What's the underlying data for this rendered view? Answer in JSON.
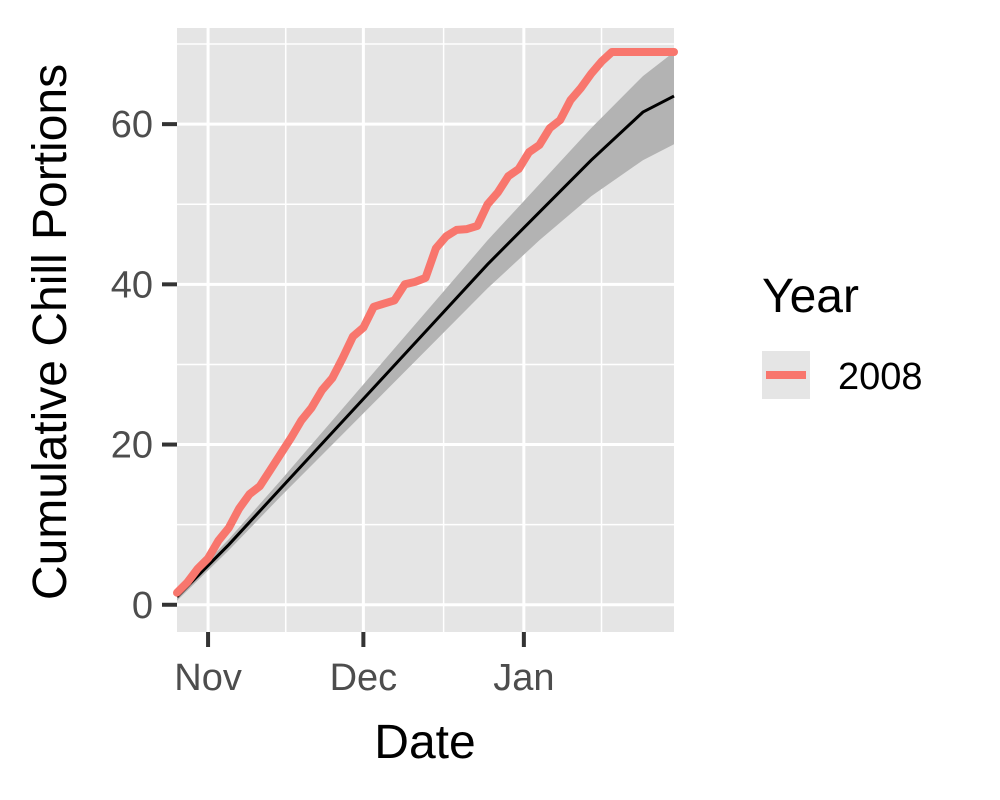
{
  "chart_data": {
    "type": "line",
    "title": "",
    "xlabel": "Date",
    "ylabel": "Cumulative Chill Portions",
    "xlim": [
      "2008-10-26",
      "2009-01-30"
    ],
    "ylim": [
      -3.4,
      72
    ],
    "x_ticks": [
      {
        "label": "Nov",
        "date": "2008-11-01"
      },
      {
        "label": "Dec",
        "date": "2008-12-01"
      },
      {
        "label": "Jan",
        "date": "2009-01-01"
      }
    ],
    "y_ticks": [
      0,
      20,
      40,
      60
    ],
    "grid": true,
    "legend": {
      "title": "Year",
      "position": "right",
      "entries": [
        "2008"
      ]
    },
    "colors": {
      "panel": "#e5e5e5",
      "grid": "#ffffff",
      "series": "#f8766d",
      "reference": "#000000",
      "band": "#b3b3b3"
    },
    "series": [
      {
        "name": "2008",
        "x": [
          "2008-10-26",
          "2008-10-28",
          "2008-10-30",
          "2008-11-01",
          "2008-11-03",
          "2008-11-05",
          "2008-11-07",
          "2008-11-09",
          "2008-11-11",
          "2008-11-13",
          "2008-11-15",
          "2008-11-17",
          "2008-11-19",
          "2008-11-21",
          "2008-11-23",
          "2008-11-25",
          "2008-11-27",
          "2008-11-29",
          "2008-12-01",
          "2008-12-03",
          "2008-12-05",
          "2008-12-07",
          "2008-12-09",
          "2008-12-11",
          "2008-12-13",
          "2008-12-15",
          "2008-12-17",
          "2008-12-19",
          "2008-12-21",
          "2008-12-23",
          "2008-12-25",
          "2008-12-27",
          "2008-12-29",
          "2008-12-31",
          "2009-01-02",
          "2009-01-04",
          "2009-01-06",
          "2009-01-08",
          "2009-01-10",
          "2009-01-12",
          "2009-01-14",
          "2009-01-16",
          "2009-01-18",
          "2009-01-20",
          "2009-01-22",
          "2009-01-24",
          "2009-01-26",
          "2009-01-28",
          "2009-01-30"
        ],
        "values": [
          1.5,
          2.8,
          4.5,
          5.8,
          8.0,
          9.6,
          12.0,
          13.8,
          14.8,
          16.8,
          18.8,
          20.8,
          23.0,
          24.6,
          26.8,
          28.3,
          30.8,
          33.5,
          34.6,
          37.2,
          37.6,
          38.0,
          40.0,
          40.3,
          40.8,
          44.5,
          46.0,
          46.8,
          46.9,
          47.3,
          50.0,
          51.5,
          53.5,
          54.4,
          56.5,
          57.4,
          59.5,
          60.5,
          63.0,
          64.5,
          66.3,
          67.8,
          69.0,
          69.0,
          69.0,
          69.0,
          69.0,
          69.0,
          69.0
        ]
      }
    ],
    "reference": {
      "x": [
        "2008-10-26",
        "2008-11-05",
        "2008-11-15",
        "2008-11-25",
        "2008-12-05",
        "2008-12-15",
        "2008-12-25",
        "2009-01-04",
        "2009-01-14",
        "2009-01-24",
        "2009-01-30"
      ],
      "mean": [
        1.0,
        7.5,
        14.5,
        21.5,
        28.5,
        35.5,
        42.5,
        49.0,
        55.5,
        61.5,
        63.5
      ],
      "lower": [
        0.5,
        6.8,
        13.5,
        20.0,
        26.5,
        33.0,
        39.5,
        45.5,
        51.0,
        55.5,
        57.5
      ],
      "upper": [
        1.5,
        8.2,
        15.5,
        23.0,
        30.5,
        38.0,
        45.5,
        52.5,
        59.5,
        66.0,
        69.0
      ]
    }
  }
}
